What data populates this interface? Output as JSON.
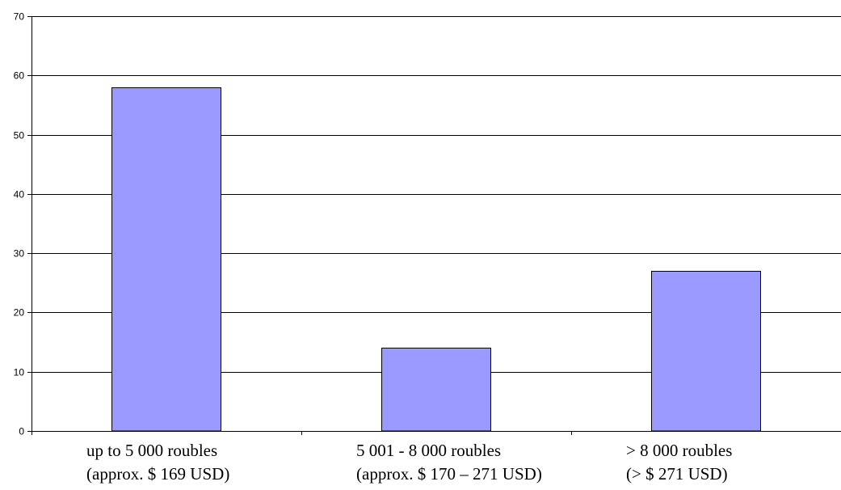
{
  "chart_data": {
    "type": "bar",
    "categories": [
      [
        "up to 5 000 roubles",
        "(approx. $ 169 USD)"
      ],
      [
        "5 001 - 8 000 roubles",
        "(approx. $ 170 – 271 USD)"
      ],
      [
        "> 8 000 roubles",
        "(> $ 271 USD)"
      ]
    ],
    "values": [
      58,
      14,
      27
    ],
    "ylim": [
      0,
      70
    ],
    "yticks": [
      0,
      10,
      20,
      30,
      40,
      50,
      60,
      70
    ],
    "grid": true,
    "legend": "none",
    "title": "",
    "xlabel": "",
    "ylabel": "",
    "colors": {
      "bar_fill": "#9999FF",
      "bar_stroke": "#000000",
      "grid": "#000000",
      "axis": "#000000"
    }
  }
}
